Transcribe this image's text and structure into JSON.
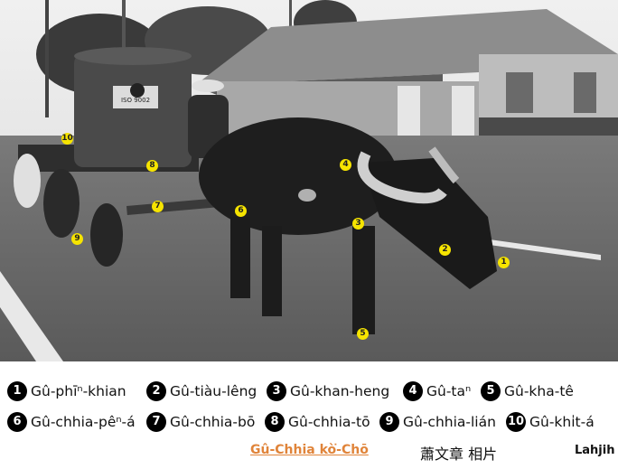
{
  "photo": {
    "alt_icon": "water-buffalo-cart-photo",
    "tank_text": "ISO 9002",
    "labels": [
      "1",
      "2",
      "3",
      "4",
      "5",
      "6",
      "7",
      "8",
      "9",
      "10"
    ]
  },
  "legend": {
    "row1": [
      {
        "num": "1",
        "text": "Gû-phīⁿ-khian"
      },
      {
        "num": "2",
        "text": "Gû-tiàu-lêng"
      },
      {
        "num": "3",
        "text": "Gû-khan-heng"
      },
      {
        "num": "4",
        "text": "Gû-taⁿ"
      },
      {
        "num": "5",
        "text": "Gû-kha-tê"
      }
    ],
    "row2": [
      {
        "num": "6",
        "text": "Gû-chhia-pêⁿ-á"
      },
      {
        "num": "7",
        "text": "Gû-chhia-bō"
      },
      {
        "num": "8",
        "text": "Gû-chhia-tō"
      },
      {
        "num": "9",
        "text": "Gû-chhia-lián"
      },
      {
        "num": "10",
        "text": "Gû-khi̍t-á"
      }
    ]
  },
  "footer": {
    "title": "Gû-Chhia kò͘-Chō",
    "credit": "蕭文章  相片",
    "brand": "Lahjih"
  },
  "colors": {
    "label_yellow": "#f6e400",
    "title_orange": "#e0843a"
  }
}
